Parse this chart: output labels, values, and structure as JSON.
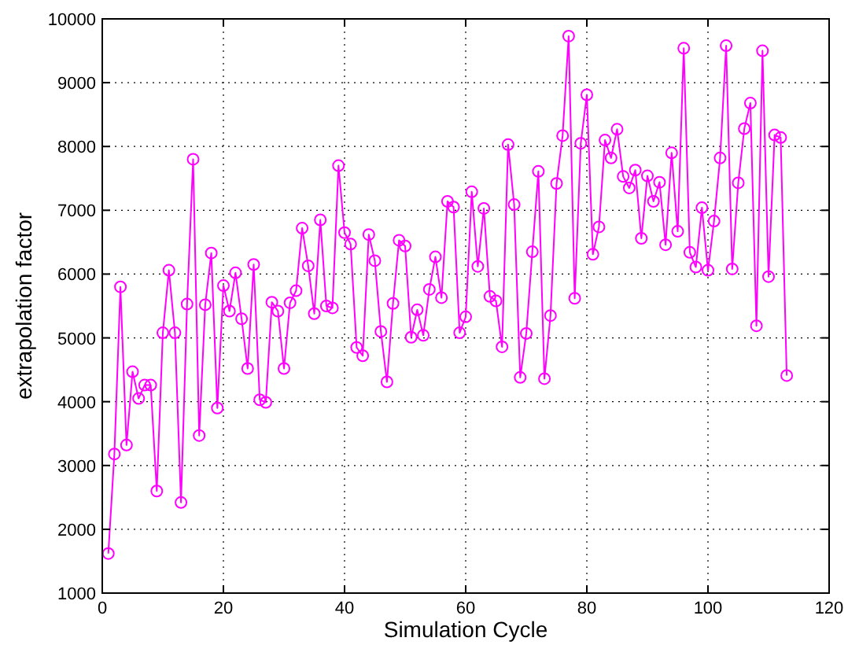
{
  "chart_data": {
    "type": "line",
    "xlabel": "Simulation Cycle",
    "ylabel": "extrapolation factor",
    "x": [
      1,
      2,
      3,
      4,
      5,
      6,
      7,
      8,
      9,
      10,
      11,
      12,
      13,
      14,
      15,
      16,
      17,
      18,
      19,
      20,
      21,
      22,
      23,
      24,
      25,
      26,
      27,
      28,
      29,
      30,
      31,
      32,
      33,
      34,
      35,
      36,
      37,
      38,
      39,
      40,
      41,
      42,
      43,
      44,
      45,
      46,
      47,
      48,
      49,
      50,
      51,
      52,
      53,
      54,
      55,
      56,
      57,
      58,
      59,
      60,
      61,
      62,
      63,
      64,
      65,
      66,
      67,
      68,
      69,
      70,
      71,
      72,
      73,
      74,
      75,
      76,
      77,
      78,
      79,
      80,
      81,
      82,
      83,
      84,
      85,
      86,
      87,
      88,
      89,
      90,
      91,
      92,
      93,
      94,
      95,
      96,
      97,
      98,
      99,
      100,
      101,
      102,
      103,
      104,
      105,
      106,
      107,
      108,
      109,
      110,
      111,
      112,
      113
    ],
    "series": [
      {
        "color": "#ff00ff",
        "values": [
          1620,
          3180,
          5800,
          3320,
          4470,
          4050,
          4260,
          4260,
          2600,
          5080,
          6060,
          5080,
          2420,
          5530,
          7800,
          3470,
          5520,
          6330,
          3900,
          5820,
          5420,
          6020,
          5300,
          4520,
          6150,
          4030,
          3990,
          5560,
          5420,
          4520,
          5550,
          5740,
          6720,
          6130,
          5380,
          6850,
          5500,
          5470,
          7700,
          6650,
          6470,
          4850,
          4720,
          6620,
          6210,
          5100,
          4310,
          5540,
          6530,
          6440,
          5010,
          5440,
          5040,
          5760,
          6270,
          5630,
          7140,
          7050,
          5080,
          5330,
          7290,
          6120,
          7030,
          5650,
          5580,
          4860,
          8030,
          7090,
          4380,
          5070,
          6350,
          7610,
          4360,
          5350,
          7420,
          8170,
          9730,
          5620,
          8050,
          8810,
          6310,
          6740,
          8100,
          7820,
          8270,
          7530,
          7350,
          7630,
          6560,
          7540,
          7140,
          7440,
          6460,
          7900,
          6670,
          9540,
          6340,
          6110,
          7040,
          6060,
          6830,
          7820,
          9580,
          6080,
          7430,
          8280,
          8680,
          5190,
          9500,
          5960,
          8180,
          8140,
          4410
        ]
      }
    ],
    "xlim": [
      0,
      120
    ],
    "xticks": [
      0,
      20,
      40,
      60,
      80,
      100,
      120
    ],
    "ylim": [
      1000,
      10000
    ],
    "yticks": [
      1000,
      2000,
      3000,
      4000,
      5000,
      6000,
      7000,
      8000,
      9000,
      10000
    ],
    "grid": true,
    "marker": "circle",
    "line_style": "solid"
  }
}
